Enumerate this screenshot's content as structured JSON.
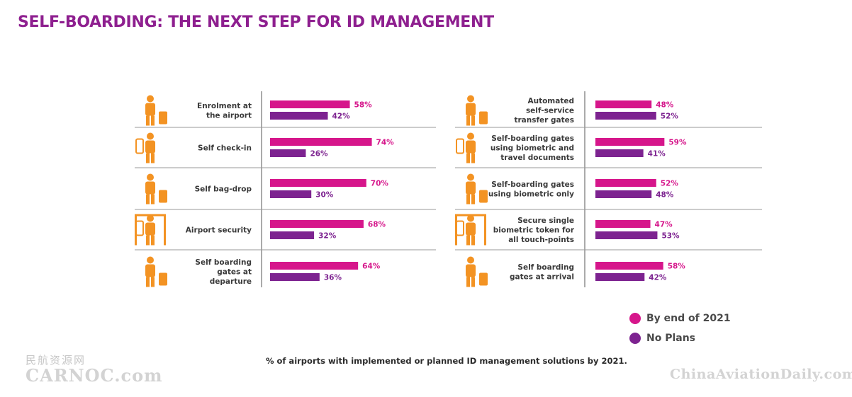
{
  "title": "SELF-BOARDING: THE NEXT STEP FOR ID MANAGEMENT",
  "colors": {
    "series1": "#d6168b",
    "series2": "#7d2390",
    "icon": "#f39323",
    "title": "#8e1f8f"
  },
  "chart_data": [
    {
      "type": "bar",
      "orientation": "horizontal",
      "categories": [
        "Enrolment at the airport",
        "Self check-in",
        "Self bag-drop",
        "Airport security",
        "Self boarding gates at departure"
      ],
      "category_lines": [
        [
          "Enrolment at",
          "the airport"
        ],
        [
          "Self check-in"
        ],
        [
          "Self bag-drop"
        ],
        [
          "Airport security"
        ],
        [
          "Self boarding",
          "gates at",
          "departure"
        ]
      ],
      "icons": [
        "enrolment-icon",
        "check-in-icon",
        "bag-drop-icon",
        "security-icon",
        "boarding-gate-icon"
      ],
      "series": [
        {
          "name": "By end of 2021",
          "values": [
            58,
            74,
            70,
            68,
            64
          ]
        },
        {
          "name": "No Plans",
          "values": [
            42,
            26,
            30,
            32,
            36
          ]
        }
      ],
      "labels": [
        [
          "58%",
          "74%",
          "70%",
          "68%",
          "64%"
        ],
        [
          "42%",
          "26%",
          "30%",
          "32%",
          "36%"
        ]
      ],
      "xlim": [
        0,
        100
      ]
    },
    {
      "type": "bar",
      "orientation": "horizontal",
      "categories": [
        "Automated self-service transfer gates",
        "Self-boarding gates using biometric and travel documents",
        "Self-boarding gates using biometric only",
        "Secure single biometric token for all touch-points",
        "Self boarding gates at arrival"
      ],
      "category_lines": [
        [
          "Automated",
          "self-service",
          "transfer gates"
        ],
        [
          "Self-boarding gates",
          "using biometric and",
          "travel documents"
        ],
        [
          "Self-boarding gates",
          "using biometric only"
        ],
        [
          "Secure single",
          "biometric token for",
          "all touch-points"
        ],
        [
          "Self boarding",
          "gates at arrival"
        ]
      ],
      "icons": [
        "transfer-gate-icon",
        "passport-gate-icon",
        "biometric-gate-icon",
        "face-scan-icon",
        "arrival-gate-icon"
      ],
      "series": [
        {
          "name": "By end of 2021",
          "values": [
            48,
            59,
            52,
            47,
            58
          ]
        },
        {
          "name": "No Plans",
          "values": [
            52,
            41,
            48,
            53,
            42
          ]
        }
      ],
      "labels": [
        [
          "48%",
          "59%",
          "52%",
          "47%",
          "58%"
        ],
        [
          "52%",
          "41%",
          "48%",
          "53%",
          "42%"
        ]
      ],
      "xlim": [
        0,
        100
      ]
    }
  ],
  "legend": [
    {
      "label": "By end of 2021",
      "color": "#d6168b"
    },
    {
      "label": "No Plans",
      "color": "#7d2390"
    }
  ],
  "caption": "%  of airports with implemented or planned ID management solutions by 2021.",
  "watermarks": {
    "left_cn": "民航资源网",
    "left_en": "CARNOC.com",
    "right": "ChinaAviationDaily.com"
  }
}
